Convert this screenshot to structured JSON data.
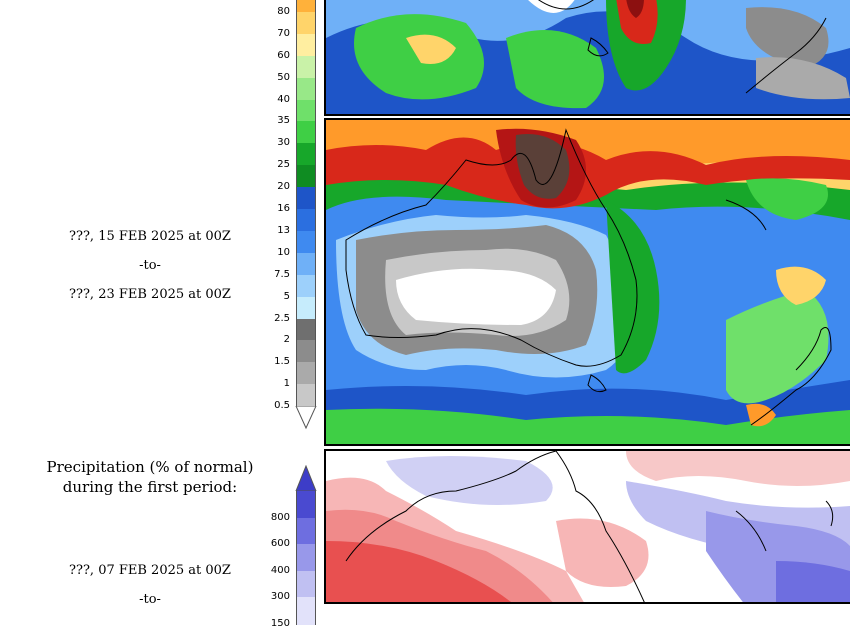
{
  "period2": {
    "start": "???, 15 FEB 2025 at 00Z",
    "to": "-to-",
    "end": "???, 23 FEB 2025 at 00Z"
  },
  "precip_pct": {
    "title_line1": "Precipitation (% of normal)",
    "title_line2": "during the first period:",
    "start": "???, 07 FEB 2025 at 00Z",
    "to": "-to-"
  },
  "totals_colorbar": {
    "labels": [
      "80",
      "70",
      "60",
      "50",
      "40",
      "35",
      "30",
      "25",
      "20",
      "16",
      "13",
      "10",
      "7.5",
      "5",
      "2.5",
      "2",
      "1.5",
      "1",
      "0.5"
    ],
    "colors": [
      "#ffb13a",
      "#ffd46a",
      "#ffeea0",
      "#c9f2a8",
      "#98e888",
      "#6fe06a",
      "#3fcf45",
      "#17a72a",
      "#0f8c22",
      "#1e55c8",
      "#2b6fe0",
      "#3f8af0",
      "#6fb0f7",
      "#9dd0fb",
      "#c6ecfc",
      "#6f6f6f",
      "#8c8c8c",
      "#aaaaaa",
      "#c8c8c8"
    ]
  },
  "pct_colorbar": {
    "labels": [
      "800",
      "600",
      "400",
      "300",
      "150"
    ],
    "colors": [
      "#4a4ad0",
      "#6e6ee0",
      "#9898ea",
      "#c0c0f2",
      "#e2e2fa"
    ]
  }
}
